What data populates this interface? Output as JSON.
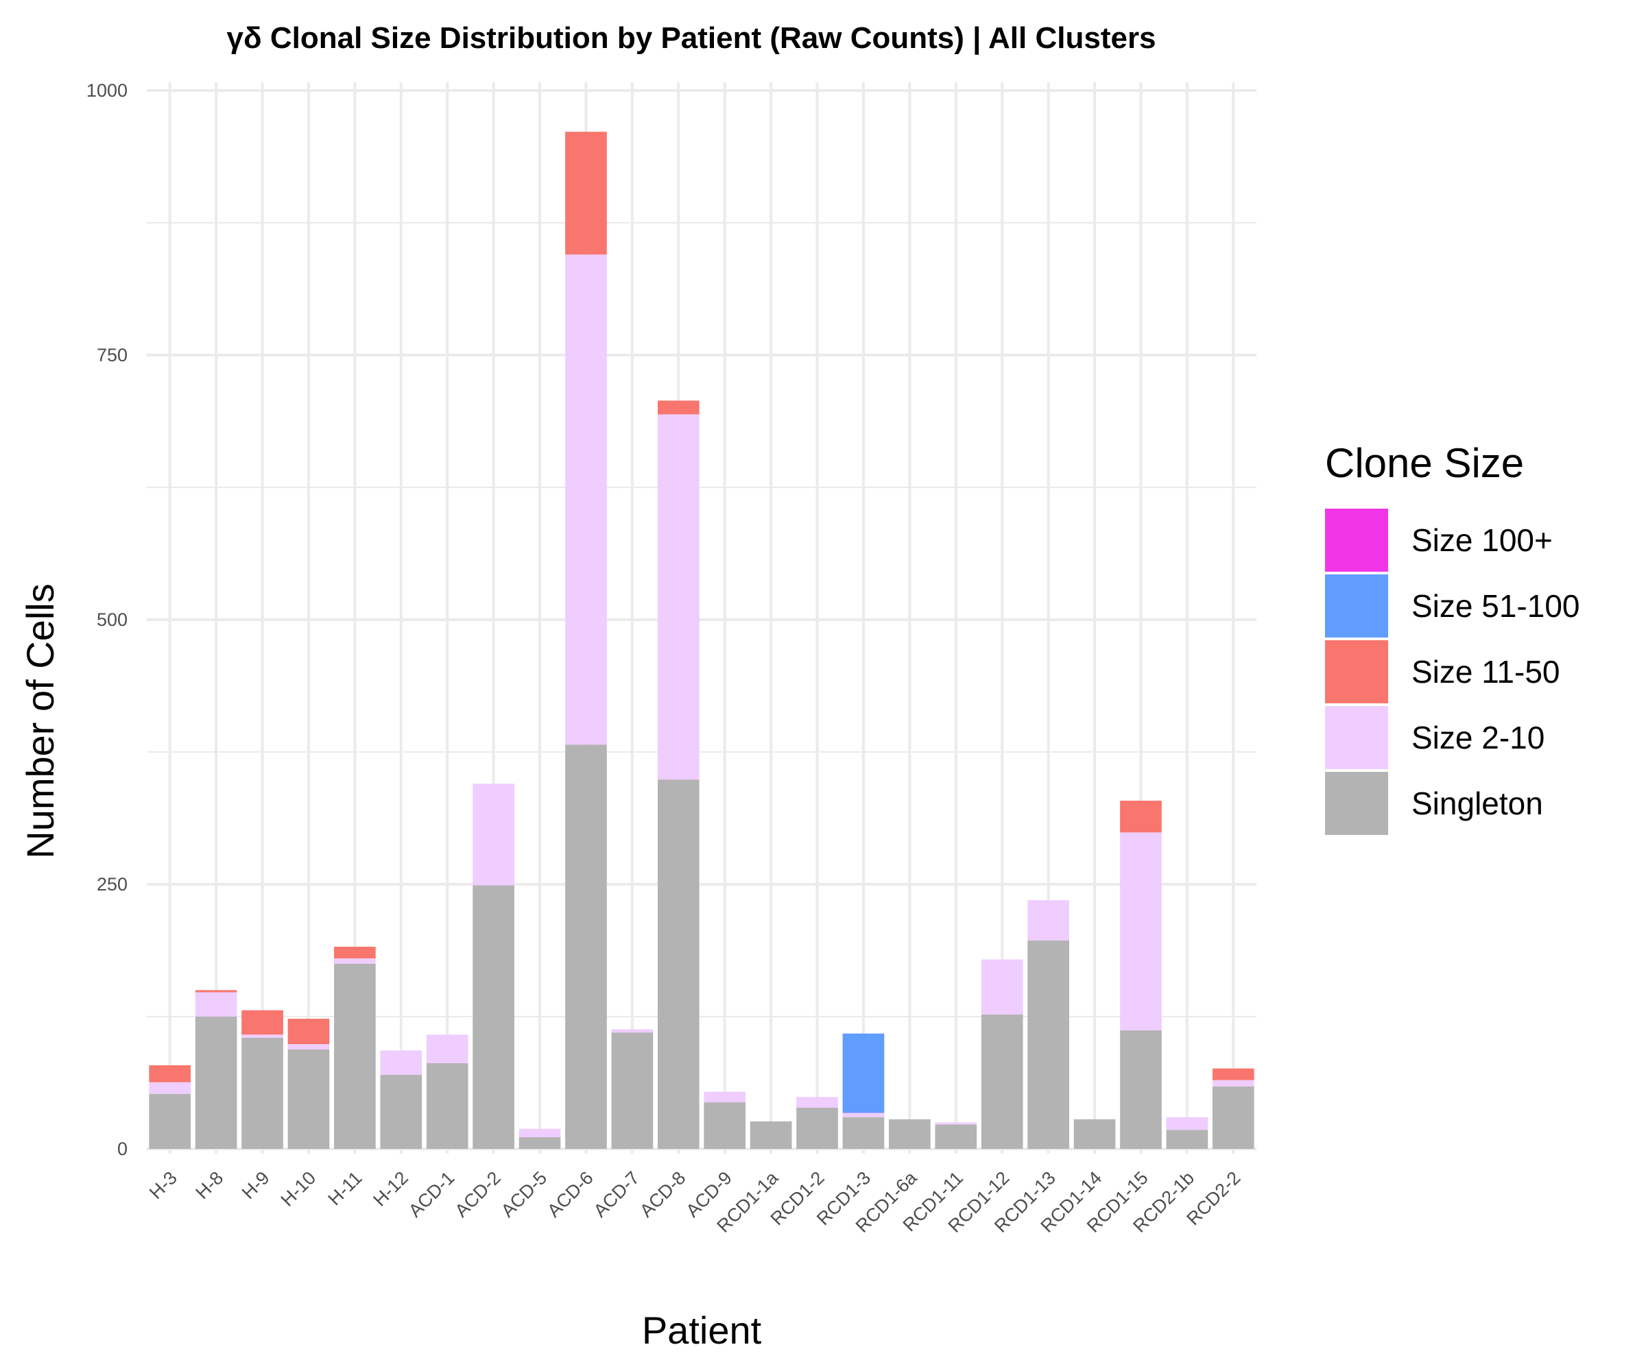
{
  "chart_data": {
    "type": "bar",
    "stacked": true,
    "title": "γδ Clonal Size Distribution by Patient (Raw Counts) | All Clusters",
    "xlabel": "Patient",
    "ylabel": "Number of Cells",
    "ylim": [
      0,
      1000
    ],
    "yticks": [
      0,
      250,
      500,
      750,
      1000
    ],
    "grid": true,
    "legend": {
      "title": "Clone Size",
      "placement": "right"
    },
    "categories": [
      "H-3",
      "H-8",
      "H-9",
      "H-10",
      "H-11",
      "H-12",
      "ACD-1",
      "ACD-2",
      "ACD-5",
      "ACD-6",
      "ACD-7",
      "ACD-8",
      "ACD-9",
      "RCD1-1a",
      "RCD1-2",
      "RCD1-3",
      "RCD1-6a",
      "RCD1-11",
      "RCD1-12",
      "RCD1-13",
      "RCD1-14",
      "RCD1-15",
      "RCD2-1b",
      "RCD2-2"
    ],
    "series": [
      {
        "name": "Singleton",
        "color": "#b3b3b3",
        "values": [
          52,
          125,
          105,
          94,
          175,
          70,
          81,
          249,
          11,
          382,
          110,
          349,
          44,
          26,
          39,
          30,
          28,
          23,
          127,
          197,
          28,
          112,
          18,
          59
        ]
      },
      {
        "name": "Size 2-10",
        "color": "#efcdff",
        "values": [
          11,
          23,
          3,
          5,
          5,
          23,
          27,
          96,
          8,
          463,
          3,
          345,
          10,
          0,
          10,
          4,
          0,
          2,
          52,
          38,
          0,
          187,
          12,
          6
        ]
      },
      {
        "name": "Size 11-50",
        "color": "#f8766d",
        "values": [
          16,
          2,
          23,
          24,
          11,
          0,
          0,
          0,
          0,
          116,
          0,
          13,
          0,
          0,
          0,
          0,
          0,
          0,
          0,
          0,
          0,
          30,
          0,
          11
        ]
      },
      {
        "name": "Size 51-100",
        "color": "#619cff",
        "values": [
          0,
          0,
          0,
          0,
          0,
          0,
          0,
          0,
          0,
          0,
          0,
          0,
          0,
          0,
          0,
          75,
          0,
          0,
          0,
          0,
          0,
          0,
          0,
          0
        ]
      },
      {
        "name": "Size 100+",
        "color": "#f135e6",
        "values": [
          0,
          0,
          0,
          0,
          0,
          0,
          0,
          0,
          0,
          0,
          0,
          0,
          0,
          0,
          0,
          0,
          0,
          0,
          0,
          0,
          0,
          0,
          0,
          0
        ]
      }
    ],
    "legend_order": [
      "Size 100+",
      "Size 51-100",
      "Size 11-50",
      "Size 2-10",
      "Singleton"
    ]
  }
}
